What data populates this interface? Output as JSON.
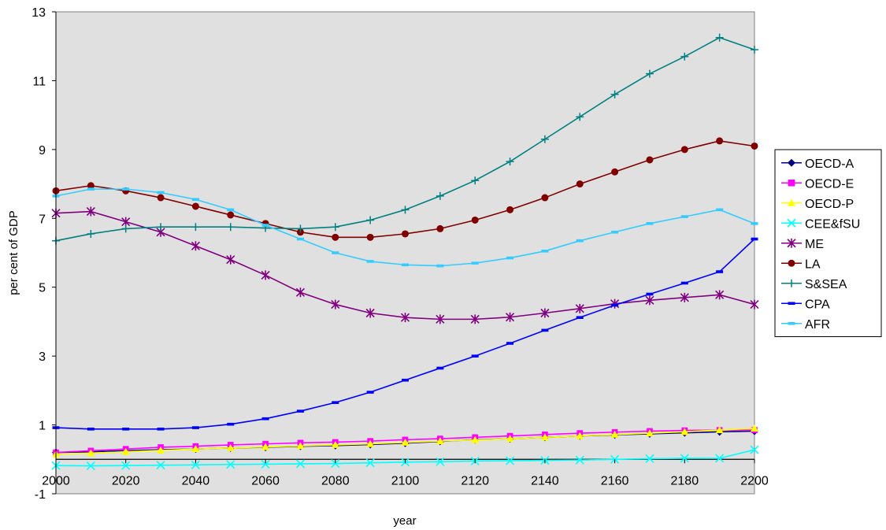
{
  "chart_data": {
    "type": "line",
    "title": "",
    "xlabel": "year",
    "ylabel": "per cent of GDP",
    "xlim": [
      2000,
      2200
    ],
    "ylim": [
      -1,
      13
    ],
    "x_ticks": [
      2000,
      2020,
      2040,
      2060,
      2080,
      2100,
      2120,
      2140,
      2160,
      2180,
      2200
    ],
    "y_ticks": [
      -1,
      1,
      3,
      5,
      7,
      9,
      11,
      13
    ],
    "grid": false,
    "plot_background": "#e0e0e0",
    "legend_position": "right",
    "x": [
      2000,
      2010,
      2020,
      2030,
      2040,
      2050,
      2060,
      2070,
      2080,
      2090,
      2100,
      2110,
      2120,
      2130,
      2140,
      2150,
      2160,
      2170,
      2180,
      2190,
      2200
    ],
    "series": [
      {
        "name": "OECD-A",
        "color": "#000080",
        "marker": "diamond",
        "values": [
          0.2,
          0.22,
          0.25,
          0.28,
          0.3,
          0.33,
          0.35,
          0.38,
          0.4,
          0.43,
          0.47,
          0.52,
          0.57,
          0.6,
          0.64,
          0.68,
          0.71,
          0.74,
          0.77,
          0.8,
          0.82
        ]
      },
      {
        "name": "OECD-E",
        "color": "#ff00ff",
        "marker": "square",
        "values": [
          0.2,
          0.25,
          0.3,
          0.35,
          0.38,
          0.42,
          0.45,
          0.48,
          0.5,
          0.53,
          0.57,
          0.6,
          0.64,
          0.68,
          0.72,
          0.76,
          0.79,
          0.82,
          0.84,
          0.85,
          0.85
        ]
      },
      {
        "name": "OECD-P",
        "color": "#ffff00",
        "marker": "triangle",
        "values": [
          0.15,
          0.18,
          0.22,
          0.26,
          0.3,
          0.33,
          0.36,
          0.39,
          0.42,
          0.45,
          0.49,
          0.53,
          0.56,
          0.6,
          0.64,
          0.68,
          0.72,
          0.76,
          0.8,
          0.85,
          0.9
        ]
      },
      {
        "name": "CEE&fSU",
        "color": "#00ffff",
        "marker": "x",
        "values": [
          -0.18,
          -0.19,
          -0.18,
          -0.17,
          -0.16,
          -0.15,
          -0.14,
          -0.13,
          -0.12,
          -0.1,
          -0.08,
          -0.07,
          -0.05,
          -0.04,
          -0.03,
          -0.02,
          0.0,
          0.02,
          0.03,
          0.03,
          0.28
        ]
      },
      {
        "name": "ME",
        "color": "#800080",
        "marker": "star",
        "values": [
          7.15,
          7.2,
          6.9,
          6.6,
          6.2,
          5.8,
          5.35,
          4.85,
          4.5,
          4.25,
          4.12,
          4.07,
          4.07,
          4.13,
          4.25,
          4.38,
          4.52,
          4.62,
          4.7,
          4.78,
          4.5
        ]
      },
      {
        "name": "LA",
        "color": "#800000",
        "marker": "circle",
        "values": [
          7.8,
          7.95,
          7.8,
          7.6,
          7.35,
          7.1,
          6.85,
          6.6,
          6.45,
          6.45,
          6.55,
          6.7,
          6.95,
          7.25,
          7.6,
          8.0,
          8.35,
          8.7,
          9.0,
          9.25,
          9.1
        ]
      },
      {
        "name": "S&SEA",
        "color": "#008080",
        "marker": "plus",
        "values": [
          6.35,
          6.55,
          6.7,
          6.75,
          6.75,
          6.75,
          6.72,
          6.7,
          6.75,
          6.95,
          7.25,
          7.65,
          8.1,
          8.65,
          9.3,
          9.95,
          10.6,
          11.2,
          11.7,
          12.25,
          11.9
        ]
      },
      {
        "name": "CPA",
        "color": "#0000ff",
        "marker": "dash",
        "values": [
          0.92,
          0.88,
          0.88,
          0.88,
          0.92,
          1.02,
          1.18,
          1.4,
          1.65,
          1.95,
          2.3,
          2.65,
          3.0,
          3.37,
          3.75,
          4.12,
          4.48,
          4.8,
          5.12,
          5.45,
          6.4
        ]
      },
      {
        "name": "AFR",
        "color": "#33ccff",
        "marker": "dash",
        "values": [
          7.65,
          7.85,
          7.85,
          7.75,
          7.55,
          7.25,
          6.8,
          6.4,
          6.0,
          5.75,
          5.65,
          5.62,
          5.7,
          5.85,
          6.05,
          6.35,
          6.6,
          6.85,
          7.05,
          7.25,
          6.85
        ]
      }
    ]
  }
}
